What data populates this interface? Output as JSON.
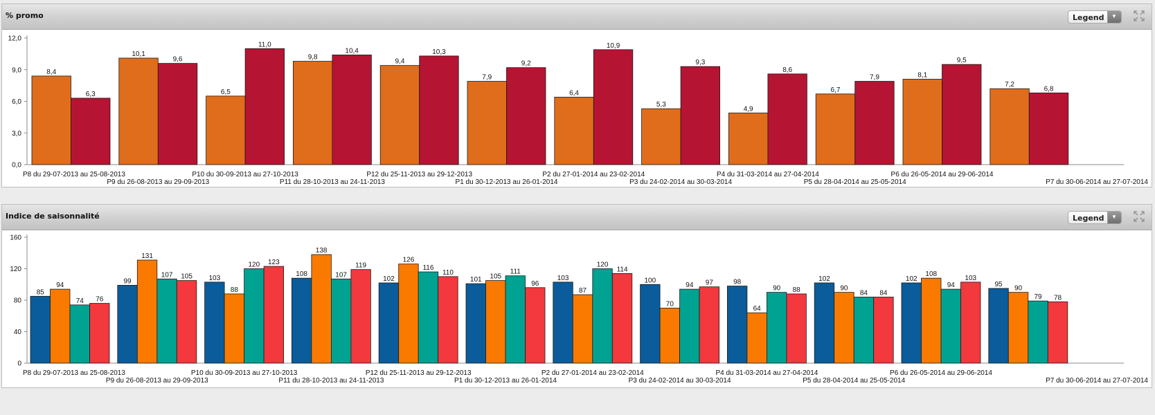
{
  "icons": {
    "expand": "expand-arrows-icon",
    "dropdown": "chevron-down-icon"
  },
  "colors": {
    "promo_series": [
      "#E06D1C",
      "#B61433"
    ],
    "saison_series": [
      "#0A5C9B",
      "#FA7A00",
      "#00A292",
      "#F3383E"
    ]
  },
  "panels": [
    {
      "title": "% promo",
      "legend_label": "Legend",
      "chart_data": {
        "type": "bar",
        "categories": [
          "P8 du 29-07-2013 au 25-08-2013",
          "P9 du 26-08-2013 au 29-09-2013",
          "P10 du 30-09-2013 au 27-10-2013",
          "P11 du 28-10-2013 au 24-11-2013",
          "P12 du 25-11-2013 au 29-12-2013",
          "P1 du 30-12-2013 au 26-01-2014",
          "P2 du 27-01-2014 au 23-02-2014",
          "P3 du 24-02-2014 au 30-03-2014",
          "P4 du 31-03-2014 au 27-04-2014",
          "P5 du 28-04-2014 au 25-05-2014",
          "P6 du 26-05-2014 au 29-06-2014",
          "P7 du 30-06-2014 au 27-07-2014"
        ],
        "series": [
          {
            "values": [
              8.4,
              10.1,
              6.5,
              9.8,
              9.4,
              7.9,
              6.4,
              5.3,
              4.9,
              6.7,
              8.1,
              7.2
            ],
            "labels": [
              "8,4",
              "10,1",
              "6,5",
              "9,8",
              "9,4",
              "7,9",
              "6,4",
              "5,3",
              "4,9",
              "6,7",
              "8,1",
              "7,2"
            ]
          },
          {
            "values": [
              6.3,
              9.6,
              11.0,
              10.4,
              10.3,
              9.2,
              10.9,
              9.3,
              8.6,
              7.9,
              9.5,
              6.8
            ],
            "labels": [
              "6,3",
              "9,6",
              "11,0",
              "10,4",
              "10,3",
              "9,2",
              "10,9",
              "9,3",
              "8,6",
              "7,9",
              "9,5",
              "6,8"
            ]
          }
        ],
        "ylim": [
          0,
          12
        ],
        "yticks": [
          0,
          3,
          6,
          9,
          12
        ],
        "ytick_labels": [
          "0,0",
          "3,0",
          "6,0",
          "9,0",
          "12,0"
        ],
        "grid": false
      }
    },
    {
      "title": "Indice de saisonnalité",
      "legend_label": "Legend",
      "chart_data": {
        "type": "bar",
        "categories": [
          "P8 du 29-07-2013 au 25-08-2013",
          "P9 du 26-08-2013 au 29-09-2013",
          "P10 du 30-09-2013 au 27-10-2013",
          "P11 du 28-10-2013 au 24-11-2013",
          "P12 du 25-11-2013 au 29-12-2013",
          "P1 du 30-12-2013 au 26-01-2014",
          "P2 du 27-01-2014 au 23-02-2014",
          "P3 du 24-02-2014 au 30-03-2014",
          "P4 du 31-03-2014 au 27-04-2014",
          "P5 du 28-04-2014 au 25-05-2014",
          "P6 du 26-05-2014 au 29-06-2014",
          "P7 du 30-06-2014 au 27-07-2014"
        ],
        "series": [
          {
            "values": [
              85,
              99,
              103,
              108,
              102,
              101,
              103,
              100,
              98,
              102,
              102,
              95
            ]
          },
          {
            "values": [
              94,
              131,
              88,
              138,
              126,
              105,
              87,
              70,
              64,
              90,
              108,
              90
            ]
          },
          {
            "values": [
              74,
              107,
              120,
              107,
              116,
              111,
              120,
              94,
              90,
              84,
              94,
              79
            ]
          },
          {
            "values": [
              76,
              105,
              123,
              119,
              110,
              96,
              114,
              97,
              88,
              84,
              103,
              78
            ]
          }
        ],
        "ylim": [
          0,
          160
        ],
        "yticks": [
          0,
          40,
          80,
          120,
          160
        ],
        "ytick_labels": [
          "0",
          "40",
          "80",
          "120",
          "160"
        ],
        "grid": false
      }
    }
  ]
}
